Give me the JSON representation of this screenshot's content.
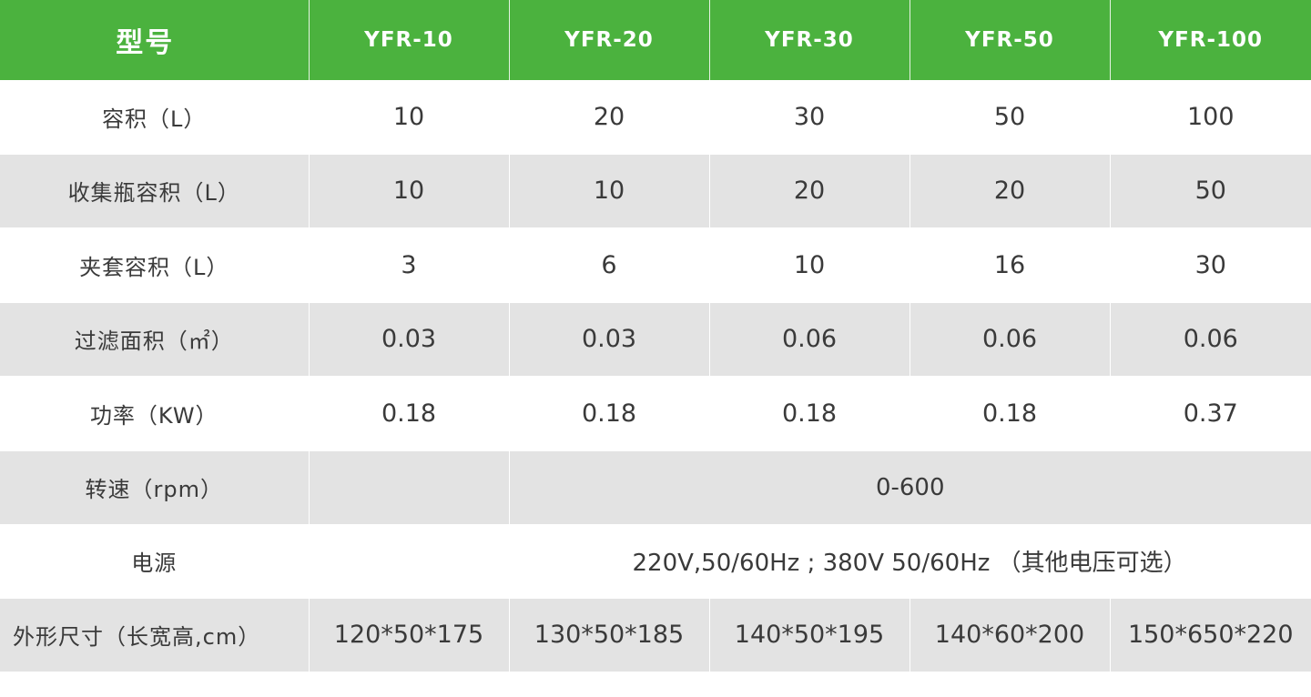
{
  "table": {
    "header": {
      "label": "型号",
      "models": [
        "YFR-10",
        "YFR-20",
        "YFR-30",
        "YFR-50",
        "YFR-100"
      ]
    },
    "rows": {
      "volume": {
        "label": "容积（L）",
        "values": [
          "10",
          "20",
          "30",
          "50",
          "100"
        ]
      },
      "collector": {
        "label": "收集瓶容积（L）",
        "values": [
          "10",
          "10",
          "20",
          "20",
          "50"
        ]
      },
      "jacket": {
        "label": "夹套容积（L）",
        "values": [
          "3",
          "6",
          "10",
          "16",
          "30"
        ]
      },
      "filter": {
        "label": "过滤面积（㎡）",
        "values": [
          "0.03",
          "0.03",
          "0.06",
          "0.06",
          "0.06"
        ]
      },
      "power": {
        "label": "功率（KW）",
        "values": [
          "0.18",
          "0.18",
          "0.18",
          "0.18",
          "0.37"
        ]
      },
      "speed": {
        "label": "转速（rpm）",
        "value": "0-600"
      },
      "supply": {
        "label": "电源",
        "value": "220V,50/60Hz ; 380V 50/60Hz （其他电压可选）"
      },
      "dimensions": {
        "label": "外形尺寸（长宽高,cm）",
        "values": [
          "120*50*175",
          "130*50*185",
          "140*50*195",
          "140*60*200",
          "150*650*220"
        ]
      }
    }
  }
}
